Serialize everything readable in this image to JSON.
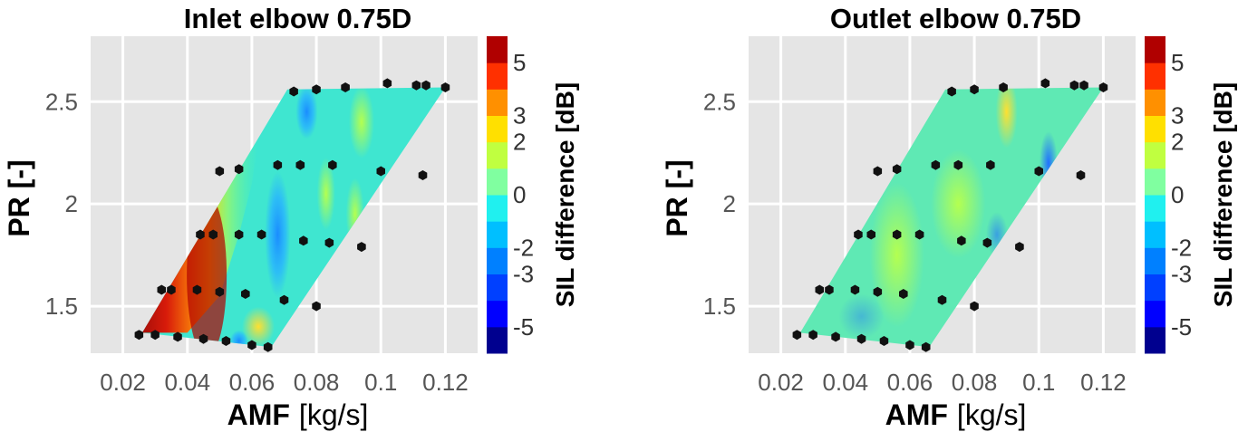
{
  "chart_data": [
    {
      "type": "heatmap",
      "title": "Inlet elbow 0.75D",
      "xlabel": "AMF",
      "xlabel_unit": "[kg/s]",
      "ylabel": "PR [-]",
      "xlim": [
        0.01,
        0.13
      ],
      "ylim": [
        1.27,
        2.82
      ],
      "x_ticks": [
        "0.02",
        "0.04",
        "0.06",
        "0.08",
        "0.1",
        "0.12"
      ],
      "y_ticks": [
        "1.5",
        "2",
        "2.5"
      ],
      "colorbar": {
        "label": "SIL difference [dB]",
        "range": [
          -6,
          6
        ],
        "ticks": [
          "5",
          "3",
          "2",
          "0",
          "-2",
          "-3",
          "-5"
        ]
      },
      "measurement_points": [
        [
          0.025,
          1.36
        ],
        [
          0.03,
          1.36
        ],
        [
          0.037,
          1.35
        ],
        [
          0.045,
          1.34
        ],
        [
          0.052,
          1.33
        ],
        [
          0.06,
          1.31
        ],
        [
          0.065,
          1.3
        ],
        [
          0.032,
          1.58
        ],
        [
          0.035,
          1.58
        ],
        [
          0.043,
          1.58
        ],
        [
          0.05,
          1.57
        ],
        [
          0.058,
          1.56
        ],
        [
          0.07,
          1.53
        ],
        [
          0.08,
          1.5
        ],
        [
          0.044,
          1.85
        ],
        [
          0.048,
          1.85
        ],
        [
          0.056,
          1.85
        ],
        [
          0.063,
          1.85
        ],
        [
          0.076,
          1.82
        ],
        [
          0.084,
          1.81
        ],
        [
          0.094,
          1.79
        ],
        [
          0.05,
          2.16
        ],
        [
          0.056,
          2.17
        ],
        [
          0.068,
          2.19
        ],
        [
          0.075,
          2.19
        ],
        [
          0.085,
          2.19
        ],
        [
          0.1,
          2.16
        ],
        [
          0.113,
          2.14
        ],
        [
          0.073,
          2.55
        ],
        [
          0.08,
          2.56
        ],
        [
          0.089,
          2.57
        ],
        [
          0.102,
          2.59
        ],
        [
          0.111,
          2.58
        ],
        [
          0.114,
          2.58
        ],
        [
          0.12,
          2.57
        ]
      ],
      "colored_region": [
        [
          0.026,
          1.37
        ],
        [
          0.066,
          1.3
        ],
        [
          0.12,
          2.57
        ],
        [
          0.071,
          2.56
        ]
      ]
    },
    {
      "type": "heatmap",
      "title": "Outlet elbow 0.75D",
      "xlabel": "AMF",
      "xlabel_unit": "[kg/s]",
      "ylabel": "PR [-]",
      "xlim": [
        0.01,
        0.13
      ],
      "ylim": [
        1.27,
        2.82
      ],
      "x_ticks": [
        "0.02",
        "0.04",
        "0.06",
        "0.08",
        "0.1",
        "0.12"
      ],
      "y_ticks": [
        "1.5",
        "2",
        "2.5"
      ],
      "colorbar": {
        "label": "SIL difference [dB]",
        "range": [
          -6,
          6
        ],
        "ticks": [
          "5",
          "3",
          "2",
          "0",
          "-2",
          "-3",
          "-5"
        ]
      },
      "measurement_points": [
        [
          0.025,
          1.36
        ],
        [
          0.03,
          1.36
        ],
        [
          0.037,
          1.35
        ],
        [
          0.045,
          1.34
        ],
        [
          0.052,
          1.33
        ],
        [
          0.06,
          1.31
        ],
        [
          0.065,
          1.3
        ],
        [
          0.032,
          1.58
        ],
        [
          0.035,
          1.58
        ],
        [
          0.043,
          1.58
        ],
        [
          0.05,
          1.57
        ],
        [
          0.058,
          1.56
        ],
        [
          0.07,
          1.53
        ],
        [
          0.08,
          1.5
        ],
        [
          0.044,
          1.85
        ],
        [
          0.048,
          1.85
        ],
        [
          0.056,
          1.85
        ],
        [
          0.063,
          1.85
        ],
        [
          0.076,
          1.82
        ],
        [
          0.084,
          1.81
        ],
        [
          0.094,
          1.79
        ],
        [
          0.05,
          2.16
        ],
        [
          0.056,
          2.17
        ],
        [
          0.068,
          2.19
        ],
        [
          0.075,
          2.19
        ],
        [
          0.085,
          2.19
        ],
        [
          0.1,
          2.16
        ],
        [
          0.113,
          2.14
        ],
        [
          0.073,
          2.55
        ],
        [
          0.08,
          2.56
        ],
        [
          0.089,
          2.57
        ],
        [
          0.102,
          2.59
        ],
        [
          0.111,
          2.58
        ],
        [
          0.114,
          2.58
        ],
        [
          0.12,
          2.57
        ]
      ],
      "colored_region": [
        [
          0.026,
          1.37
        ],
        [
          0.066,
          1.3
        ],
        [
          0.12,
          2.57
        ],
        [
          0.071,
          2.56
        ]
      ]
    }
  ]
}
